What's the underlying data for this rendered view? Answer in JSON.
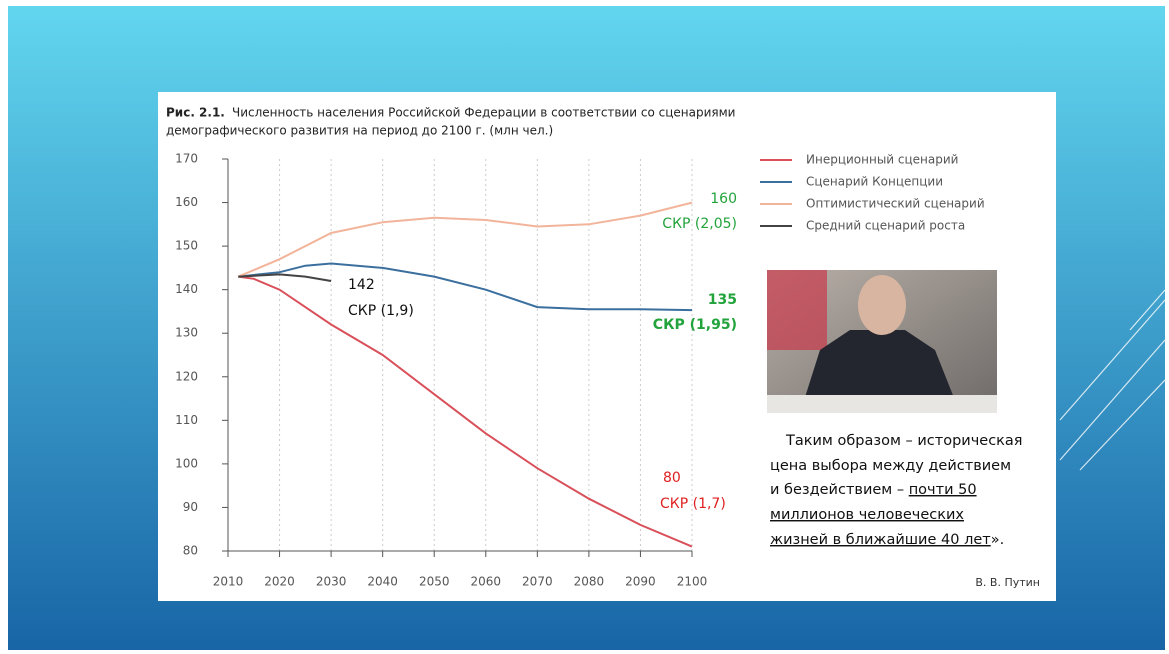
{
  "chart_data": {
    "type": "line",
    "title": "Рис. 2.1.",
    "title_rest": "Численность населения Российской Федерации в соответствии со сценариями",
    "subtitle": "демографического развития на период до 2100 г. (млн чел.)",
    "xlim": [
      2010,
      2100
    ],
    "xticks": [
      2010,
      2020,
      2030,
      2040,
      2050,
      2060,
      2070,
      2080,
      2090,
      2100
    ],
    "ylim": [
      80,
      170
    ],
    "yticks": [
      80,
      90,
      100,
      110,
      120,
      130,
      140,
      150,
      160,
      170
    ],
    "grid": true,
    "series": [
      {
        "name": "Инерционный сценарий",
        "color": "#d9505a",
        "x": [
          2012,
          2015,
          2020,
          2025,
          2030,
          2040,
          2050,
          2060,
          2070,
          2080,
          2090,
          2100
        ],
        "values": [
          143,
          142.5,
          140,
          136,
          132,
          125,
          116,
          107,
          99,
          92,
          86,
          81
        ]
      },
      {
        "name": "Сценарий Концепции",
        "color": "#3b6f9e",
        "x": [
          2012,
          2020,
          2025,
          2030,
          2040,
          2050,
          2060,
          2070,
          2080,
          2090,
          2100
        ],
        "values": [
          143,
          144,
          145.5,
          146,
          145,
          143,
          140,
          136,
          135.5,
          135.5,
          135.3
        ]
      },
      {
        "name": "Оптимистический сценарий",
        "color": "#f2b49a",
        "x": [
          2012,
          2020,
          2030,
          2040,
          2050,
          2060,
          2070,
          2080,
          2090,
          2100
        ],
        "values": [
          143,
          147,
          153,
          155.5,
          156.5,
          156,
          154.5,
          155,
          157,
          160
        ]
      },
      {
        "name": "Средний сценарий роста",
        "color": "#444444",
        "x": [
          2012,
          2020,
          2025,
          2030
        ],
        "values": [
          143,
          143.5,
          143,
          142
        ]
      }
    ],
    "annotations": [
      {
        "text": "160",
        "color": "#22a33b"
      },
      {
        "text": "СКР (2,05)",
        "color": "#22a33b"
      },
      {
        "text": "135",
        "color": "#22a33b"
      },
      {
        "text": "СКР (1,95)",
        "color": "#22a33b"
      },
      {
        "text": "142",
        "color": "#111111"
      },
      {
        "text": "СКР (1,9)",
        "color": "#111111"
      },
      {
        "text": "80",
        "color": "#e02020"
      },
      {
        "text": "СКР  (1,7)",
        "color": "#e02020"
      }
    ]
  },
  "quote": {
    "lines": [
      "Таким образом – историческая",
      "цена выбора между действием",
      "и бездействием – "
    ],
    "underlined": [
      "почти 50",
      "миллионов человеческих",
      "жизней в ближайшие 40 лет"
    ],
    "end": "».",
    "author": "В. В. Путин"
  }
}
